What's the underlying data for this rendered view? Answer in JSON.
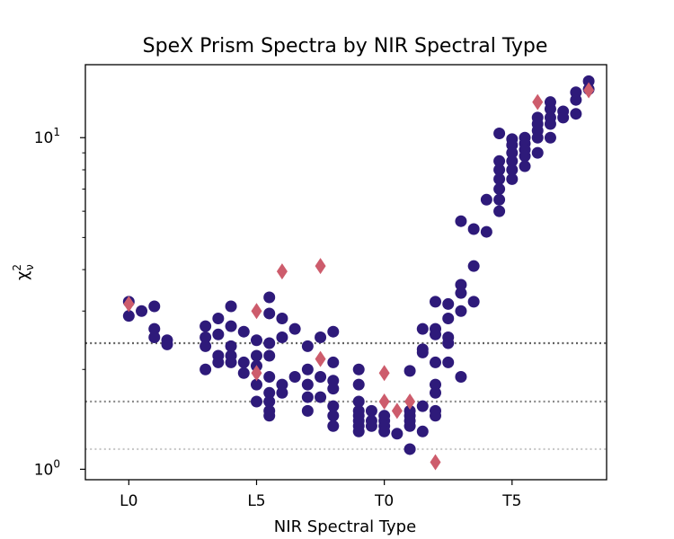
{
  "chart_data": {
    "type": "scatter",
    "title": "SpeX Prism Spectra by NIR Spectral Type",
    "xlabel": "NIR Spectral Type",
    "ylabel": "χ²_ν",
    "ylabel_base": "χ",
    "ylabel_sup": "2",
    "ylabel_sub": "ν",
    "yscale": "log",
    "xlim": [
      -1.7,
      18.7
    ],
    "ylim": [
      0.93,
      16.6
    ],
    "x_ticks": [
      {
        "value": 0,
        "label": "L0"
      },
      {
        "value": 5,
        "label": "L5"
      },
      {
        "value": 10,
        "label": "T0"
      },
      {
        "value": 15,
        "label": "T5"
      }
    ],
    "y_ticks": [
      {
        "value": 1,
        "base": "10",
        "exp": "0"
      },
      {
        "value": 10,
        "base": "10",
        "exp": "1"
      }
    ],
    "reference_lines": [
      {
        "y": 2.4,
        "color": "#606060"
      },
      {
        "y": 1.6,
        "color": "#8c8c8c"
      },
      {
        "y": 1.15,
        "color": "#c8c8c8"
      }
    ],
    "series": [
      {
        "name": "objects",
        "marker": "circle",
        "color": "#2e1a7a",
        "points": [
          [
            0,
            3.2
          ],
          [
            0,
            2.9
          ],
          [
            0.5,
            3.0
          ],
          [
            1,
            3.1
          ],
          [
            1,
            2.65
          ],
          [
            1,
            2.5
          ],
          [
            1.5,
            2.45
          ],
          [
            1.5,
            2.38
          ],
          [
            3,
            2.7
          ],
          [
            3,
            2.5
          ],
          [
            3,
            2.35
          ],
          [
            3,
            2.0
          ],
          [
            3.5,
            2.85
          ],
          [
            3.5,
            2.55
          ],
          [
            3.5,
            2.2
          ],
          [
            3.5,
            2.1
          ],
          [
            4,
            3.1
          ],
          [
            4,
            2.7
          ],
          [
            4,
            2.35
          ],
          [
            4,
            2.2
          ],
          [
            4,
            2.1
          ],
          [
            4.5,
            2.6
          ],
          [
            4.5,
            2.1
          ],
          [
            4.5,
            1.95
          ],
          [
            5,
            2.45
          ],
          [
            5,
            2.2
          ],
          [
            5,
            2.05
          ],
          [
            5,
            1.8
          ],
          [
            5,
            1.6
          ],
          [
            5.5,
            3.3
          ],
          [
            5.5,
            2.95
          ],
          [
            5.5,
            2.4
          ],
          [
            5.5,
            2.2
          ],
          [
            5.5,
            1.9
          ],
          [
            5.5,
            1.7
          ],
          [
            5.5,
            1.6
          ],
          [
            5.5,
            1.5
          ],
          [
            5.5,
            1.45
          ],
          [
            6,
            2.85
          ],
          [
            6,
            2.5
          ],
          [
            6,
            1.8
          ],
          [
            6,
            1.7
          ],
          [
            6.5,
            2.65
          ],
          [
            6.5,
            1.9
          ],
          [
            7,
            2.35
          ],
          [
            7,
            2.0
          ],
          [
            7,
            1.8
          ],
          [
            7,
            1.65
          ],
          [
            7,
            1.5
          ],
          [
            7.5,
            2.5
          ],
          [
            7.5,
            1.9
          ],
          [
            7.5,
            1.65
          ],
          [
            8,
            2.6
          ],
          [
            8,
            2.1
          ],
          [
            8,
            1.85
          ],
          [
            8,
            1.75
          ],
          [
            8,
            1.55
          ],
          [
            8,
            1.45
          ],
          [
            8,
            1.35
          ],
          [
            9,
            2.0
          ],
          [
            9,
            1.8
          ],
          [
            9,
            1.6
          ],
          [
            9,
            1.5
          ],
          [
            9,
            1.45
          ],
          [
            9,
            1.4
          ],
          [
            9,
            1.35
          ],
          [
            9,
            1.3
          ],
          [
            9.5,
            1.5
          ],
          [
            9.5,
            1.4
          ],
          [
            9.5,
            1.35
          ],
          [
            10,
            1.45
          ],
          [
            10,
            1.4
          ],
          [
            10,
            1.35
          ],
          [
            10,
            1.3
          ],
          [
            10.5,
            1.28
          ],
          [
            11,
            1.5
          ],
          [
            11,
            1.45
          ],
          [
            11,
            1.4
          ],
          [
            11,
            1.35
          ],
          [
            11,
            1.15
          ],
          [
            11,
            1.98
          ],
          [
            11.5,
            2.65
          ],
          [
            11.5,
            2.3
          ],
          [
            11.5,
            2.25
          ],
          [
            11.5,
            1.55
          ],
          [
            11.5,
            1.3
          ],
          [
            12,
            3.2
          ],
          [
            12,
            2.65
          ],
          [
            12,
            2.55
          ],
          [
            12,
            2.1
          ],
          [
            12,
            1.8
          ],
          [
            12,
            1.7
          ],
          [
            12,
            1.5
          ],
          [
            12,
            1.45
          ],
          [
            12.5,
            3.15
          ],
          [
            12.5,
            2.85
          ],
          [
            12.5,
            2.5
          ],
          [
            12.5,
            2.4
          ],
          [
            12.5,
            2.1
          ],
          [
            13,
            5.6
          ],
          [
            13,
            3.6
          ],
          [
            13,
            3.4
          ],
          [
            13,
            3.0
          ],
          [
            13,
            1.9
          ],
          [
            13.5,
            5.3
          ],
          [
            13.5,
            4.1
          ],
          [
            13.5,
            3.2
          ],
          [
            14,
            5.2
          ],
          [
            14,
            6.5
          ],
          [
            14.5,
            10.3
          ],
          [
            14.5,
            8.5
          ],
          [
            14.5,
            8.0
          ],
          [
            14.5,
            7.5
          ],
          [
            14.5,
            7.0
          ],
          [
            14.5,
            6.5
          ],
          [
            14.5,
            6.0
          ],
          [
            15,
            9.9
          ],
          [
            15,
            9.5
          ],
          [
            15,
            9.0
          ],
          [
            15,
            8.5
          ],
          [
            15,
            8.0
          ],
          [
            15,
            7.5
          ],
          [
            15.5,
            10.0
          ],
          [
            15.5,
            9.6
          ],
          [
            15.5,
            9.2
          ],
          [
            15.5,
            8.8
          ],
          [
            15.5,
            8.2
          ],
          [
            16,
            11.5
          ],
          [
            16,
            11.0
          ],
          [
            16,
            10.5
          ],
          [
            16,
            10.0
          ],
          [
            16,
            9.0
          ],
          [
            16.5,
            12.8
          ],
          [
            16.5,
            12.2
          ],
          [
            16.5,
            11.5
          ],
          [
            16.5,
            11.0
          ],
          [
            16.5,
            10.0
          ],
          [
            17,
            12.0
          ],
          [
            17,
            11.5
          ],
          [
            17.5,
            13.7
          ],
          [
            17.5,
            13.0
          ],
          [
            17.5,
            11.8
          ],
          [
            18,
            14.8
          ],
          [
            18,
            14.0
          ]
        ]
      },
      {
        "name": "highlighted",
        "marker": "diamond",
        "color": "#cd5c6c",
        "points": [
          [
            0,
            3.15
          ],
          [
            5,
            3.0
          ],
          [
            5,
            1.95
          ],
          [
            6,
            3.95
          ],
          [
            7.5,
            4.1
          ],
          [
            7.5,
            2.15
          ],
          [
            10,
            1.95
          ],
          [
            10,
            1.6
          ],
          [
            10.5,
            1.5
          ],
          [
            11,
            1.6
          ],
          [
            12,
            1.05
          ],
          [
            16,
            12.8
          ],
          [
            18,
            13.9
          ]
        ]
      }
    ]
  }
}
